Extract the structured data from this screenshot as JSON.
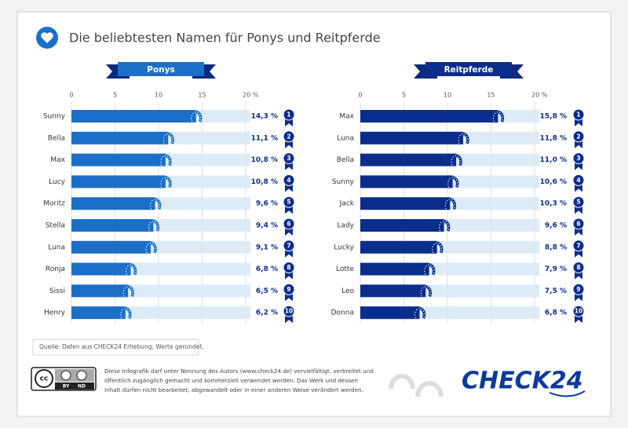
{
  "header": {
    "title": "Die beliebtesten Namen für Ponys und Reitpferde"
  },
  "chart_data": [
    {
      "type": "bar",
      "orientation": "horizontal",
      "title": "Ponys",
      "categories": [
        "Sunny",
        "Bella",
        "Max",
        "Lucy",
        "Moritz",
        "Stella",
        "Luna",
        "Ronja",
        "Sissi",
        "Henry"
      ],
      "values": [
        14.3,
        11.1,
        10.8,
        10.8,
        9.6,
        9.4,
        9.1,
        6.8,
        6.5,
        6.2
      ],
      "value_labels": [
        "14,3 %",
        "11,1 %",
        "10,8 %",
        "10,8 %",
        "9,6 %",
        "9,4 %",
        "9,1 %",
        "6,8 %",
        "6,5 %",
        "6,2 %"
      ],
      "ranks": [
        1,
        2,
        3,
        4,
        5,
        6,
        7,
        8,
        9,
        10
      ],
      "color": "#1c6fc8",
      "xlim": [
        0,
        20
      ],
      "xticks": [
        0,
        5,
        10,
        15,
        {
          "value": 20,
          "label": "20 %"
        }
      ],
      "grid": true
    },
    {
      "type": "bar",
      "orientation": "horizontal",
      "title": "Reitpferde",
      "categories": [
        "Max",
        "Luna",
        "Bella",
        "Sunny",
        "Jack",
        "Lady",
        "Lucky",
        "Lotte",
        "Leo",
        "Donna"
      ],
      "values": [
        15.8,
        11.8,
        11.0,
        10.6,
        10.3,
        9.6,
        8.8,
        7.9,
        7.5,
        6.8
      ],
      "value_labels": [
        "15,8 %",
        "11,8 %",
        "11,0 %",
        "10,6 %",
        "10,3 %",
        "9,6 %",
        "8,8 %",
        "7,9 %",
        "7,5 %",
        "6,8 %"
      ],
      "ranks": [
        1,
        2,
        3,
        4,
        5,
        6,
        7,
        8,
        9,
        10
      ],
      "color": "#0b2d8c",
      "xlim": [
        0,
        20
      ],
      "xticks": [
        0,
        5,
        10,
        15,
        {
          "value": 20,
          "label": "20 %"
        }
      ],
      "grid": true
    }
  ],
  "footer": {
    "source": "Quelle: Daten aus CHECK24 Erhebung; Werte gerundet.",
    "license": [
      "Diese Infografik darf unter Nennung des Autors (www.check24.de) vervielfältigt, verbreitet und",
      "öffentlich zugänglich gemacht und kommerziell verwendet werden. Das Werk und dessen",
      "Inhalt dürfen nicht bearbeitet, abgewandelt oder in einer anderen Weise verändert werden."
    ],
    "cc_badge": [
      "cc",
      "BY",
      "ND"
    ],
    "logo": "CHECK24"
  }
}
